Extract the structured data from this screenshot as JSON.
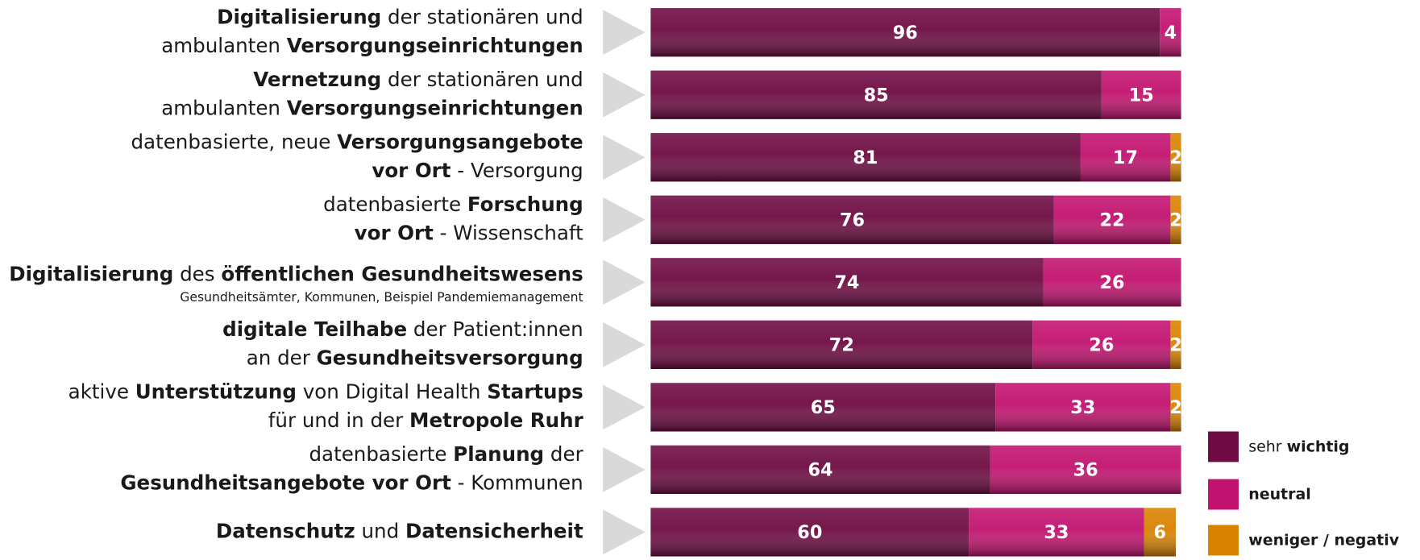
{
  "chart_data": {
    "type": "stacked-bar-horizontal",
    "categories": [
      {
        "lines": [
          [
            {
              "text": "Digitalisierung",
              "bold": true
            },
            {
              "text": " der stationären und",
              "bold": false
            }
          ],
          [
            {
              "text": "ambulanten ",
              "bold": false
            },
            {
              "text": "Versorgungseinrichtungen",
              "bold": true
            }
          ]
        ]
      },
      {
        "lines": [
          [
            {
              "text": "Vernetzung",
              "bold": true
            },
            {
              "text": " der stationären und",
              "bold": false
            }
          ],
          [
            {
              "text": "ambulanten ",
              "bold": false
            },
            {
              "text": "Versorgungseinrichtungen",
              "bold": true
            }
          ]
        ]
      },
      {
        "lines": [
          [
            {
              "text": "datenbasierte, neue ",
              "bold": false
            },
            {
              "text": "Versorgungsangebote",
              "bold": true
            }
          ],
          [
            {
              "text": "vor Ort",
              "bold": true
            },
            {
              "text": " - Versorgung",
              "bold": false
            }
          ]
        ]
      },
      {
        "lines": [
          [
            {
              "text": "datenbasierte ",
              "bold": false
            },
            {
              "text": "Forschung",
              "bold": true
            }
          ],
          [
            {
              "text": "vor Ort",
              "bold": true
            },
            {
              "text": " - Wissenschaft",
              "bold": false
            }
          ]
        ]
      },
      {
        "lines": [
          [
            {
              "text": "Digitalisierung",
              "bold": true
            },
            {
              "text": " des ",
              "bold": false
            },
            {
              "text": "öffentlichen Gesundheitswesens",
              "bold": true
            }
          ]
        ],
        "note": "Gesundheitsämter, Kommunen, Beispiel Pandemiemanagement"
      },
      {
        "lines": [
          [
            {
              "text": "digitale Teilhabe",
              "bold": true
            },
            {
              "text": " der Patient:innen",
              "bold": false
            }
          ],
          [
            {
              "text": "an der ",
              "bold": false
            },
            {
              "text": "Gesundheitsversorgung",
              "bold": true
            }
          ]
        ]
      },
      {
        "lines": [
          [
            {
              "text": "aktive ",
              "bold": false
            },
            {
              "text": "Unterstützung",
              "bold": true
            },
            {
              "text": " von Digital Health ",
              "bold": false
            },
            {
              "text": "Startups",
              "bold": true
            }
          ],
          [
            {
              "text": "für und in der ",
              "bold": false
            },
            {
              "text": "Metropole Ruhr",
              "bold": true
            }
          ]
        ]
      },
      {
        "lines": [
          [
            {
              "text": "datenbasierte ",
              "bold": false
            },
            {
              "text": "Planung",
              "bold": true
            },
            {
              "text": " der",
              "bold": false
            }
          ],
          [
            {
              "text": "Gesundheitsangebote vor Ort",
              "bold": true
            },
            {
              "text": " - Kommunen",
              "bold": false
            }
          ]
        ]
      },
      {
        "lines": [
          [
            {
              "text": "Datenschutz",
              "bold": true
            },
            {
              "text": " und ",
              "bold": false
            },
            {
              "text": "Datensicherheit",
              "bold": true
            }
          ]
        ]
      }
    ],
    "series": [
      {
        "name": [
          {
            "text": "sehr ",
            "bold": false
          },
          {
            "text": "wichtig",
            "bold": true
          }
        ],
        "color": "#6e0b42",
        "values": [
          96,
          85,
          81,
          76,
          74,
          72,
          65,
          64,
          60
        ]
      },
      {
        "name": [
          {
            "text": "neutral",
            "bold": true
          }
        ],
        "color": "#c2126f",
        "values": [
          4,
          15,
          17,
          22,
          26,
          26,
          33,
          36,
          33
        ]
      },
      {
        "name": [
          {
            "text": "weniger / negativ",
            "bold": true
          }
        ],
        "color": "#d98200",
        "values": [
          null,
          null,
          2,
          2,
          null,
          2,
          2,
          null,
          6
        ]
      }
    ],
    "xlim": [
      0,
      100
    ]
  }
}
